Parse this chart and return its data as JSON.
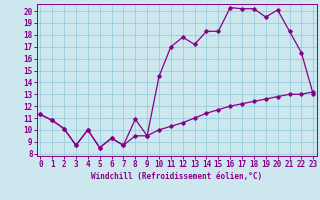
{
  "title": "",
  "xlabel": "Windchill (Refroidissement éolien,°C)",
  "bg_color": "#cce8ee",
  "line_color": "#880088",
  "grid_color": "#99ccdd",
  "upper_x": [
    0,
    1,
    2,
    3,
    4,
    5,
    6,
    7,
    8,
    9,
    10,
    11,
    12,
    13,
    14,
    15,
    16,
    17,
    18,
    19,
    20,
    21,
    22,
    23
  ],
  "upper_y": [
    11.3,
    10.8,
    10.1,
    8.7,
    10.0,
    8.5,
    9.3,
    8.7,
    10.9,
    9.5,
    14.5,
    17.0,
    17.8,
    17.2,
    18.3,
    18.3,
    20.3,
    20.2,
    20.2,
    19.5,
    20.1,
    18.3,
    16.5,
    13.0
  ],
  "lower_x": [
    0,
    1,
    2,
    3,
    4,
    5,
    6,
    7,
    8,
    9,
    10,
    11,
    12,
    13,
    14,
    15,
    16,
    17,
    18,
    19,
    20,
    21,
    22,
    23
  ],
  "lower_y": [
    11.3,
    10.8,
    10.1,
    8.7,
    10.0,
    8.5,
    9.3,
    8.7,
    9.5,
    9.5,
    10.0,
    10.3,
    10.6,
    11.0,
    11.4,
    11.7,
    12.0,
    12.2,
    12.4,
    12.6,
    12.8,
    13.0,
    13.0,
    13.2
  ],
  "xlim": [
    -0.3,
    23.3
  ],
  "ylim": [
    7.8,
    20.6
  ],
  "yticks": [
    8,
    9,
    10,
    11,
    12,
    13,
    14,
    15,
    16,
    17,
    18,
    19,
    20
  ],
  "xticks": [
    0,
    1,
    2,
    3,
    4,
    5,
    6,
    7,
    8,
    9,
    10,
    11,
    12,
    13,
    14,
    15,
    16,
    17,
    18,
    19,
    20,
    21,
    22,
    23
  ],
  "tick_fontsize": 5.5,
  "xlabel_fontsize": 5.5
}
